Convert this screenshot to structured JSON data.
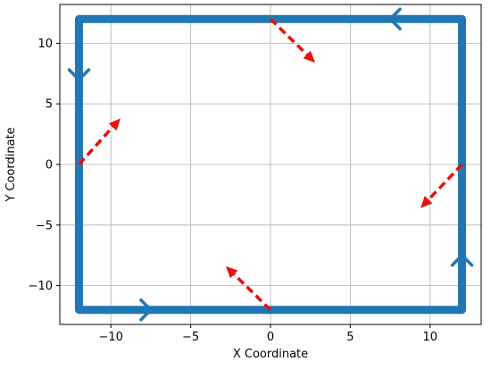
{
  "chart_data": {
    "type": "line",
    "title": "",
    "xlabel": "X Coordinate",
    "ylabel": "Y Coordinate",
    "xlim": [
      -13.2,
      13.2
    ],
    "ylim": [
      -13.2,
      13.2
    ],
    "grid": true,
    "x_ticks": [
      -10,
      -5,
      0,
      5,
      10
    ],
    "y_ticks": [
      -10,
      -5,
      0,
      5,
      10
    ],
    "x_tick_labels": [
      "−10",
      "−5",
      "0",
      "5",
      "10"
    ],
    "y_tick_labels": [
      "−10",
      "−5",
      "0",
      "5",
      "10"
    ],
    "path": {
      "color": "#1f77b4",
      "points": [
        [
          -12,
          12
        ],
        [
          12,
          12
        ],
        [
          12,
          -12
        ],
        [
          -12,
          -12
        ],
        [
          -12,
          12
        ]
      ]
    },
    "path_direction_markers": [
      {
        "x": -12,
        "y": 7,
        "direction": "down"
      },
      {
        "x": -7.5,
        "y": -12,
        "direction": "right"
      },
      {
        "x": 12,
        "y": -7.5,
        "direction": "up"
      },
      {
        "x": 7.5,
        "y": 12,
        "direction": "left"
      }
    ],
    "normal_vectors": {
      "color": "#e8100c",
      "style": "dashed",
      "vectors": [
        {
          "x": 0,
          "y": 12,
          "dx": 2.8,
          "dy": -3.6
        },
        {
          "x": -12,
          "y": 0,
          "dx": 2.6,
          "dy": 3.8
        },
        {
          "x": 0,
          "y": -12,
          "dx": -2.8,
          "dy": 3.6
        },
        {
          "x": 12,
          "y": 0,
          "dx": -2.6,
          "dy": -3.6
        }
      ]
    }
  }
}
